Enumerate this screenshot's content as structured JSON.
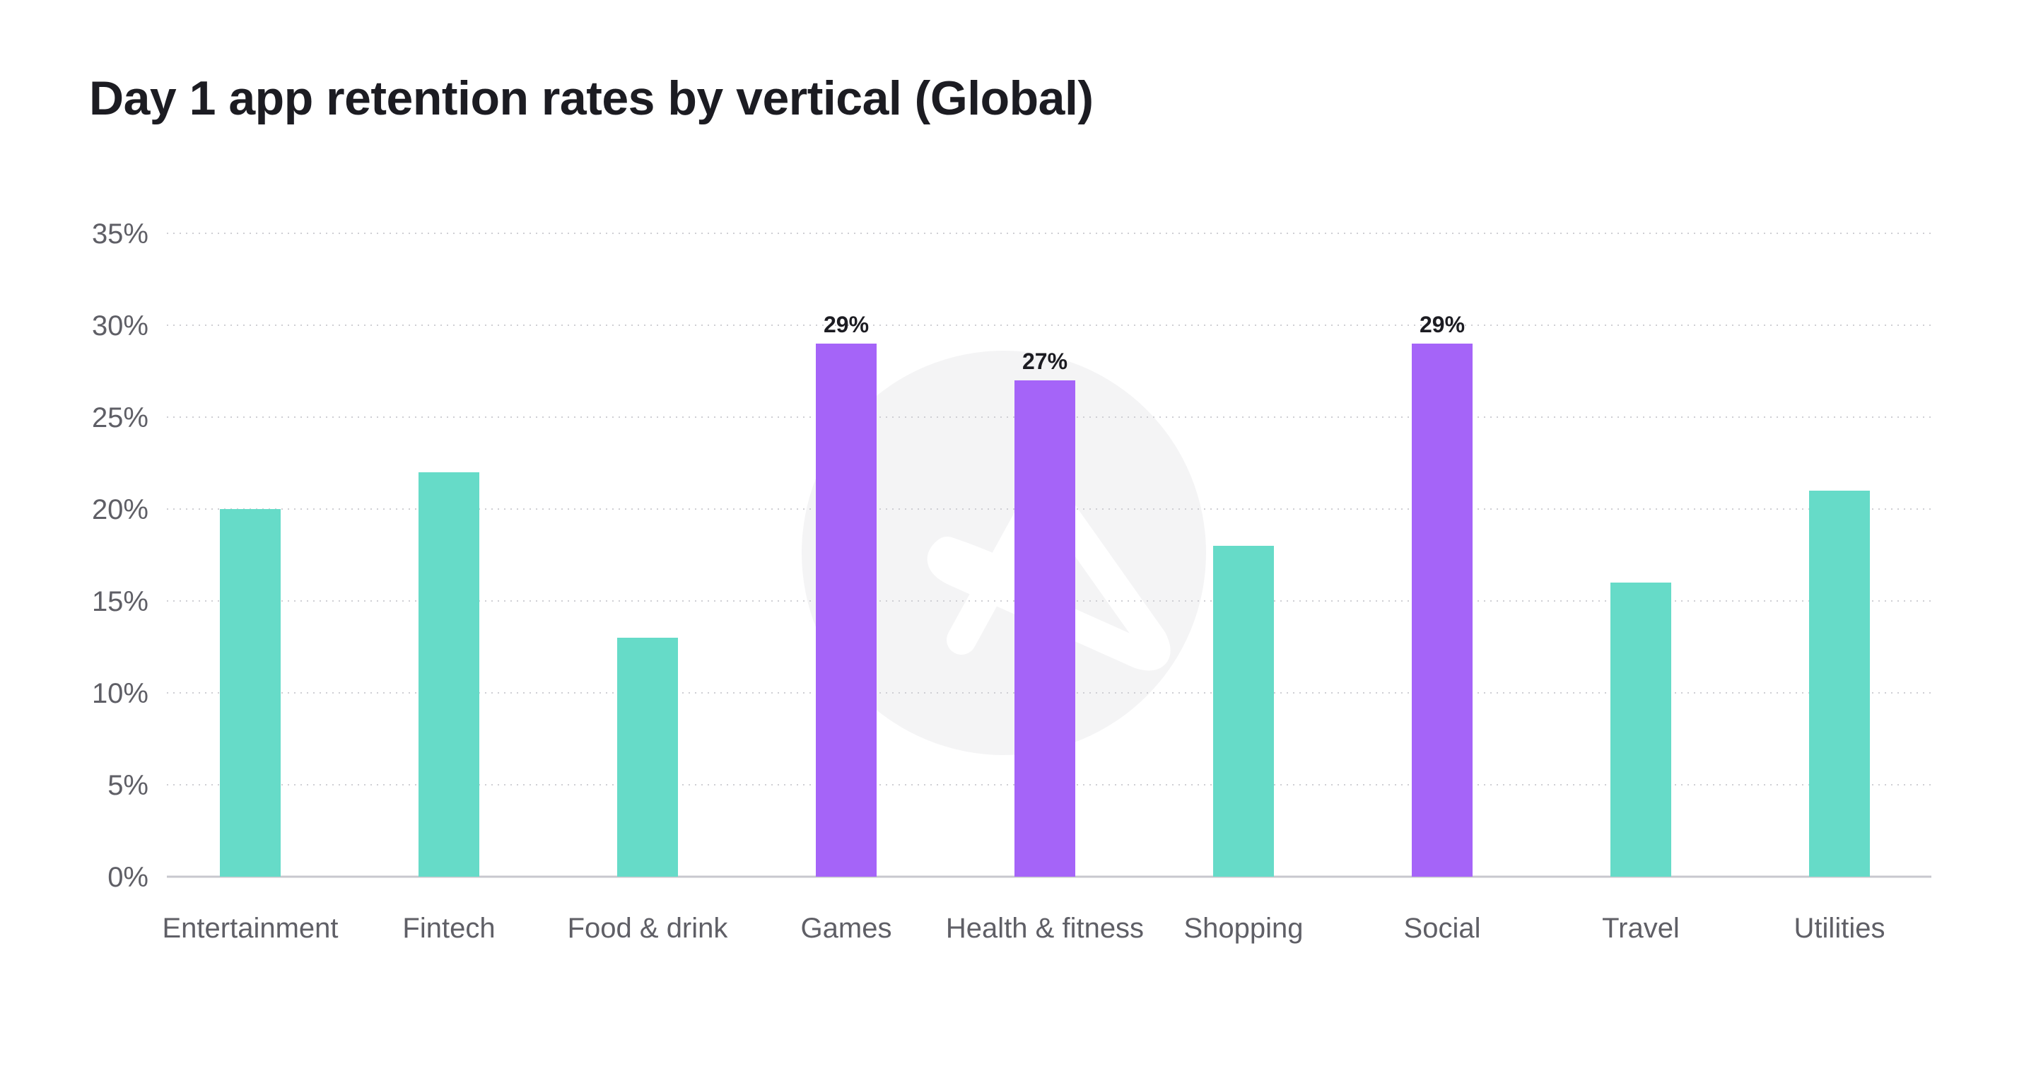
{
  "chart_data": {
    "type": "bar",
    "title": "Day 1 app retention rates by vertical (Global)",
    "xlabel": "",
    "ylabel": "",
    "categories": [
      "Entertainment",
      "Fintech",
      "Food & drink",
      "Games",
      "Health & fitness",
      "Shopping",
      "Social",
      "Travel",
      "Utilities"
    ],
    "values": [
      20,
      22,
      13,
      29,
      27,
      18,
      29,
      16,
      21
    ],
    "highlighted": [
      false,
      false,
      false,
      true,
      true,
      false,
      true,
      false,
      false
    ],
    "data_labels": [
      "",
      "",
      "",
      "29%",
      "27%",
      "",
      "29%",
      "",
      ""
    ],
    "ylim": [
      0,
      35
    ],
    "yticks": [
      0,
      5,
      10,
      15,
      20,
      25,
      30,
      35
    ],
    "ytick_labels": [
      "0%",
      "5%",
      "10%",
      "15%",
      "20%",
      "25%",
      "30%",
      "35%"
    ],
    "grid": true,
    "legend": "none",
    "colors": {
      "bar": "#66dbc8",
      "highlight": "#a564f8",
      "grid": "#cfcfd4",
      "axis": "#c8c8ce",
      "watermark": "#f4f4f5"
    }
  }
}
